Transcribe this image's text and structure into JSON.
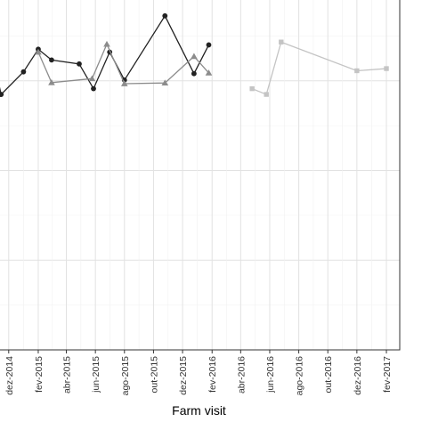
{
  "chart_data": {
    "type": "line",
    "title": "",
    "xlabel": "Farm visit",
    "ylabel": "",
    "x_ticks": [
      "dez-2014",
      "fev-2015",
      "abr-2015",
      "jun-2015",
      "ago-2015",
      "out-2015",
      "dez-2015",
      "fev-2016",
      "abr-2016",
      "jun-2016",
      "ago-2016",
      "out-2016",
      "dez-2016",
      "fev-2017"
    ],
    "x_range": [
      "2014-10-25",
      "2017-03-01"
    ],
    "y_range": [
      0,
      1
    ],
    "grid": true,
    "legend": "none",
    "series": [
      {
        "color": "#222222",
        "marker": "circle",
        "points": [
          {
            "x": "2014-10-25",
            "y": 0.835
          },
          {
            "x": "2014-11-15",
            "y": 0.712
          },
          {
            "x": "2015-01-01",
            "y": 0.775
          },
          {
            "x": "2015-02-01",
            "y": 0.838
          },
          {
            "x": "2015-03-01",
            "y": 0.808
          },
          {
            "x": "2015-04-28",
            "y": 0.797
          },
          {
            "x": "2015-05-28",
            "y": 0.728
          },
          {
            "x": "2015-07-01",
            "y": 0.83
          },
          {
            "x": "2015-08-01",
            "y": 0.752
          },
          {
            "x": "2015-10-25",
            "y": 0.931
          },
          {
            "x": "2015-12-25",
            "y": 0.77
          },
          {
            "x": "2016-01-25",
            "y": 0.85
          }
        ]
      },
      {
        "color": "#8c8c8c",
        "marker": "triangle",
        "points": [
          {
            "x": "2015-02-01",
            "y": 0.83
          },
          {
            "x": "2015-03-01",
            "y": 0.745
          },
          {
            "x": "2015-05-25",
            "y": 0.756
          },
          {
            "x": "2015-06-25",
            "y": 0.852
          },
          {
            "x": "2015-08-01",
            "y": 0.742
          },
          {
            "x": "2015-10-25",
            "y": 0.744
          },
          {
            "x": "2015-12-25",
            "y": 0.818
          },
          {
            "x": "2016-01-25",
            "y": 0.772
          }
        ]
      },
      {
        "color": "#c4c4c4",
        "marker": "square",
        "points": [
          {
            "x": "2016-04-25",
            "y": 0.728
          },
          {
            "x": "2016-05-25",
            "y": 0.712
          },
          {
            "x": "2016-06-25",
            "y": 0.858
          },
          {
            "x": "2016-12-01",
            "y": 0.778
          },
          {
            "x": "2017-02-01",
            "y": 0.784
          }
        ]
      }
    ]
  }
}
